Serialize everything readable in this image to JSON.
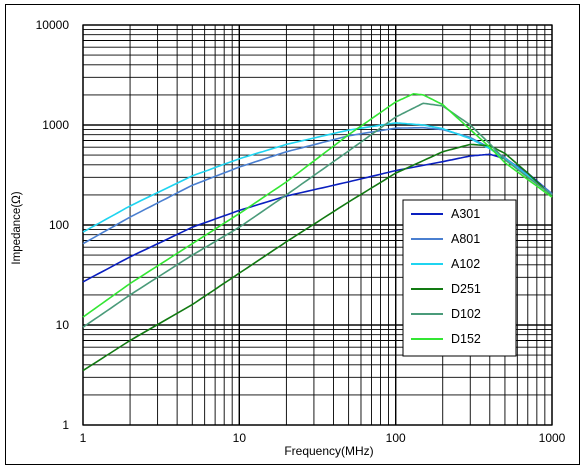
{
  "chart_data": {
    "type": "line",
    "title": "",
    "xlabel": "Frequency(MHz)",
    "ylabel": "Impedance(Ω)",
    "x_scale": "log",
    "y_scale": "log",
    "xlim": [
      1,
      1000
    ],
    "ylim": [
      1,
      10000
    ],
    "x_ticks": [
      {
        "value": 1,
        "label": "1"
      },
      {
        "value": 10,
        "label": "10"
      },
      {
        "value": 100,
        "label": "100"
      },
      {
        "value": 1000,
        "label": "1000"
      }
    ],
    "y_ticks": [
      {
        "value": 1,
        "label": "1"
      },
      {
        "value": 10,
        "label": "10"
      },
      {
        "value": 100,
        "label": "100"
      },
      {
        "value": 1000,
        "label": "1000"
      },
      {
        "value": 10000,
        "label": "10000"
      }
    ],
    "grid": true,
    "legend_position": "right",
    "series": [
      {
        "name": "A301",
        "color": "#0a1fbf",
        "x": [
          1,
          2,
          5,
          10,
          20,
          50,
          100,
          200,
          300,
          400,
          500,
          700,
          1000
        ],
        "y": [
          27,
          48,
          95,
          140,
          195,
          270,
          350,
          430,
          490,
          510,
          460,
          330,
          205
        ]
      },
      {
        "name": "A801",
        "color": "#4a7fd0",
        "x": [
          1,
          2,
          5,
          10,
          20,
          50,
          100,
          150,
          200,
          300,
          400,
          500,
          700,
          1000
        ],
        "y": [
          65,
          120,
          250,
          380,
          540,
          780,
          930,
          940,
          900,
          750,
          590,
          470,
          320,
          205
        ]
      },
      {
        "name": "A102",
        "color": "#1fd4f0",
        "x": [
          1,
          2,
          5,
          10,
          20,
          50,
          100,
          150,
          200,
          300,
          400,
          500,
          700,
          1000
        ],
        "y": [
          85,
          155,
          310,
          460,
          640,
          890,
          1050,
          1000,
          920,
          730,
          580,
          460,
          310,
          200
        ]
      },
      {
        "name": "D251",
        "color": "#127a12",
        "x": [
          1,
          2,
          5,
          10,
          20,
          50,
          100,
          200,
          300,
          400,
          500,
          700,
          1000
        ],
        "y": [
          3.5,
          7,
          16,
          33,
          68,
          170,
          330,
          540,
          640,
          620,
          520,
          330,
          195
        ]
      },
      {
        "name": "D102",
        "color": "#4a9b7a",
        "x": [
          1,
          2,
          5,
          10,
          20,
          50,
          100,
          150,
          200,
          300,
          400,
          500,
          700,
          1000
        ],
        "y": [
          9.5,
          20,
          50,
          95,
          200,
          550,
          1200,
          1650,
          1550,
          1000,
          650,
          450,
          300,
          200
        ]
      },
      {
        "name": "D152",
        "color": "#33e633",
        "x": [
          1,
          2,
          5,
          10,
          20,
          50,
          100,
          130,
          150,
          200,
          300,
          400,
          500,
          700,
          1000
        ],
        "y": [
          12,
          26,
          65,
          130,
          270,
          800,
          1700,
          2050,
          2000,
          1600,
          900,
          600,
          420,
          285,
          190
        ]
      }
    ]
  }
}
